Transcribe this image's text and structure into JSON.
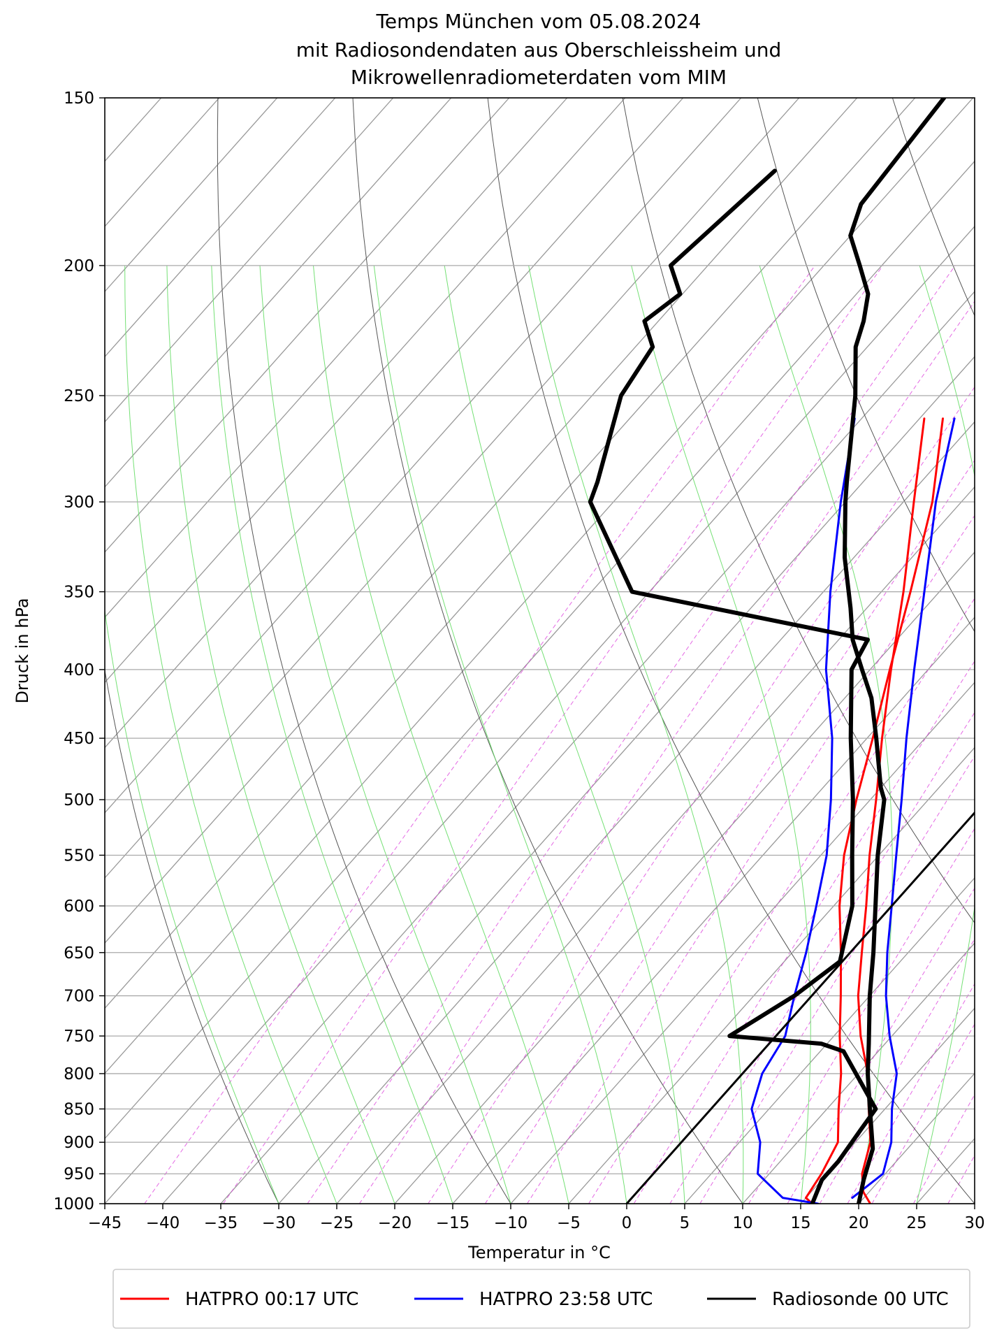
{
  "chart_data": {
    "type": "line",
    "title_lines": [
      "Temps München vom 05.08.2024",
      "mit Radiosondendaten aus Oberschleissheim und",
      "Mikrowellenradiometerdaten vom MIM"
    ],
    "xlabel": "Temperatur in $^\\circ$C",
    "xlabel_display": "Temperatur in °C",
    "ylabel": "Druck in hPa",
    "xlim": [
      -45,
      30
    ],
    "ylim": [
      1000,
      150
    ],
    "yscale": "log",
    "skew_T_per_decade_logp": 103,
    "x_ticks": [
      -45,
      -40,
      -35,
      -30,
      -25,
      -20,
      -15,
      -10,
      -5,
      0,
      5,
      10,
      15,
      20,
      25,
      30
    ],
    "x_tick_labels": [
      "−45",
      "−40",
      "−35",
      "−30",
      "−25",
      "−20",
      "−15",
      "−10",
      "−5",
      "0",
      "5",
      "10",
      "15",
      "20",
      "25",
      "30"
    ],
    "y_ticks": [
      1000,
      950,
      900,
      850,
      800,
      750,
      700,
      650,
      600,
      550,
      500,
      450,
      400,
      350,
      300,
      250,
      200,
      150
    ],
    "y_tick_labels": [
      "1000",
      "950",
      "900",
      "850",
      "800",
      "750",
      "700",
      "650",
      "600",
      "550",
      "500",
      "450",
      "400",
      "350",
      "300",
      "250",
      "200",
      "150"
    ],
    "grid": true,
    "legend_position": "bottom",
    "legend": [
      {
        "label": "HATPRO 00:17 UTC",
        "color": "#ff0000"
      },
      {
        "label": "HATPRO 23:58 UTC",
        "color": "#0000ff"
      },
      {
        "label": "Radiosonde 00 UTC",
        "color": "#000000"
      }
    ],
    "series": [
      {
        "name": "HATPRO 00:17 UTC",
        "kind": "temperature",
        "color": "#ff0000",
        "points": [
          [
            1000,
            21.0
          ],
          [
            980,
            19.5
          ],
          [
            950,
            18.0
          ],
          [
            900,
            16.3
          ],
          [
            850,
            13.6
          ],
          [
            800,
            10.8
          ],
          [
            750,
            7.3
          ],
          [
            700,
            4.0
          ],
          [
            650,
            1.0
          ],
          [
            600,
            -2.2
          ],
          [
            550,
            -5.8
          ],
          [
            500,
            -9.5
          ],
          [
            450,
            -13.7
          ],
          [
            400,
            -18.2
          ],
          [
            350,
            -23.1
          ],
          [
            300,
            -29.1
          ],
          [
            260,
            -34.6
          ]
        ]
      },
      {
        "name": "HATPRO 00:17 UTC",
        "kind": "dewpoint",
        "color": "#ff0000",
        "points": [
          [
            1000,
            16.0
          ],
          [
            990,
            15.0
          ],
          [
            950,
            14.5
          ],
          [
            900,
            13.5
          ],
          [
            850,
            11.0
          ],
          [
            800,
            8.5
          ],
          [
            750,
            5.5
          ],
          [
            700,
            2.5
          ],
          [
            650,
            -0.8
          ],
          [
            600,
            -4.5
          ],
          [
            550,
            -8.0
          ],
          [
            500,
            -11.2
          ],
          [
            450,
            -14.5
          ],
          [
            400,
            -18.3
          ],
          [
            350,
            -22.5
          ],
          [
            300,
            -27.5
          ],
          [
            260,
            -33.0
          ]
        ]
      },
      {
        "name": "HATPRO 23:58 UTC",
        "kind": "temperature",
        "color": "#0000ff",
        "points": [
          [
            990,
            19.0
          ],
          [
            950,
            19.8
          ],
          [
            900,
            18.1
          ],
          [
            850,
            15.6
          ],
          [
            800,
            13.3
          ],
          [
            750,
            9.8
          ],
          [
            700,
            6.4
          ],
          [
            650,
            3.2
          ],
          [
            600,
            0.0
          ],
          [
            550,
            -3.5
          ],
          [
            500,
            -7.3
          ],
          [
            450,
            -11.6
          ],
          [
            400,
            -16.2
          ],
          [
            350,
            -21.3
          ],
          [
            300,
            -27.2
          ],
          [
            260,
            -32.0
          ]
        ]
      },
      {
        "name": "HATPRO 23:58 UTC",
        "kind": "dewpoint",
        "color": "#0000ff",
        "points": [
          [
            1000,
            16.5
          ],
          [
            990,
            13.0
          ],
          [
            950,
            9.0
          ],
          [
            900,
            6.8
          ],
          [
            850,
            3.5
          ],
          [
            800,
            1.7
          ],
          [
            750,
            0.8
          ],
          [
            700,
            -1.5
          ],
          [
            650,
            -3.8
          ],
          [
            600,
            -6.5
          ],
          [
            550,
            -9.5
          ],
          [
            500,
            -13.4
          ],
          [
            450,
            -18.0
          ],
          [
            400,
            -23.8
          ],
          [
            350,
            -29.4
          ],
          [
            300,
            -35.4
          ],
          [
            260,
            -40.6
          ]
        ]
      },
      {
        "name": "Radiosonde 00 UTC",
        "kind": "temperature",
        "color": "#000000",
        "points": [
          [
            1000,
            20.0
          ],
          [
            960,
            18.6
          ],
          [
            910,
            17.0
          ],
          [
            850,
            13.7
          ],
          [
            800,
            10.8
          ],
          [
            760,
            8.6
          ],
          [
            700,
            5.0
          ],
          [
            650,
            2.0
          ],
          [
            600,
            -1.4
          ],
          [
            550,
            -5.1
          ],
          [
            500,
            -8.8
          ],
          [
            490,
            -10.0
          ],
          [
            450,
            -14.2
          ],
          [
            420,
            -17.7
          ],
          [
            400,
            -20.7
          ],
          [
            380,
            -23.8
          ],
          [
            360,
            -26.4
          ],
          [
            330,
            -30.8
          ],
          [
            300,
            -35.0
          ],
          [
            290,
            -36.4
          ],
          [
            250,
            -42.3
          ],
          [
            230,
            -46.0
          ],
          [
            220,
            -47.3
          ],
          [
            210,
            -49.0
          ],
          [
            200,
            -51.9
          ],
          [
            190,
            -55.0
          ],
          [
            180,
            -56.5
          ],
          [
            150,
            -57.5
          ]
        ]
      },
      {
        "name": "Radiosonde 00 UTC",
        "kind": "dewpoint",
        "color": "#000000",
        "points": [
          [
            1000,
            16.0
          ],
          [
            960,
            15.0
          ],
          [
            930,
            15.0
          ],
          [
            880,
            14.5
          ],
          [
            850,
            14.2
          ],
          [
            770,
            7.0
          ],
          [
            760,
            4.5
          ],
          [
            750,
            -4.0
          ],
          [
            700,
            -1.5
          ],
          [
            660,
            -0.2
          ],
          [
            600,
            -3.4
          ],
          [
            550,
            -7.3
          ],
          [
            500,
            -11.5
          ],
          [
            450,
            -16.4
          ],
          [
            400,
            -21.6
          ],
          [
            380,
            -22.5
          ],
          [
            350,
            -46.5
          ],
          [
            300,
            -57.0
          ],
          [
            290,
            -57.9
          ],
          [
            250,
            -62.5
          ],
          [
            230,
            -63.5
          ],
          [
            220,
            -66.2
          ],
          [
            210,
            -65.2
          ],
          [
            200,
            -68.2
          ],
          [
            170,
            -66.5
          ]
        ]
      },
      {
        "name": "",
        "kind": "0 °C isotherm",
        "color": "#000000",
        "points": [
          [
            1000,
            0
          ],
          [
            150,
            0
          ]
        ]
      }
    ]
  }
}
